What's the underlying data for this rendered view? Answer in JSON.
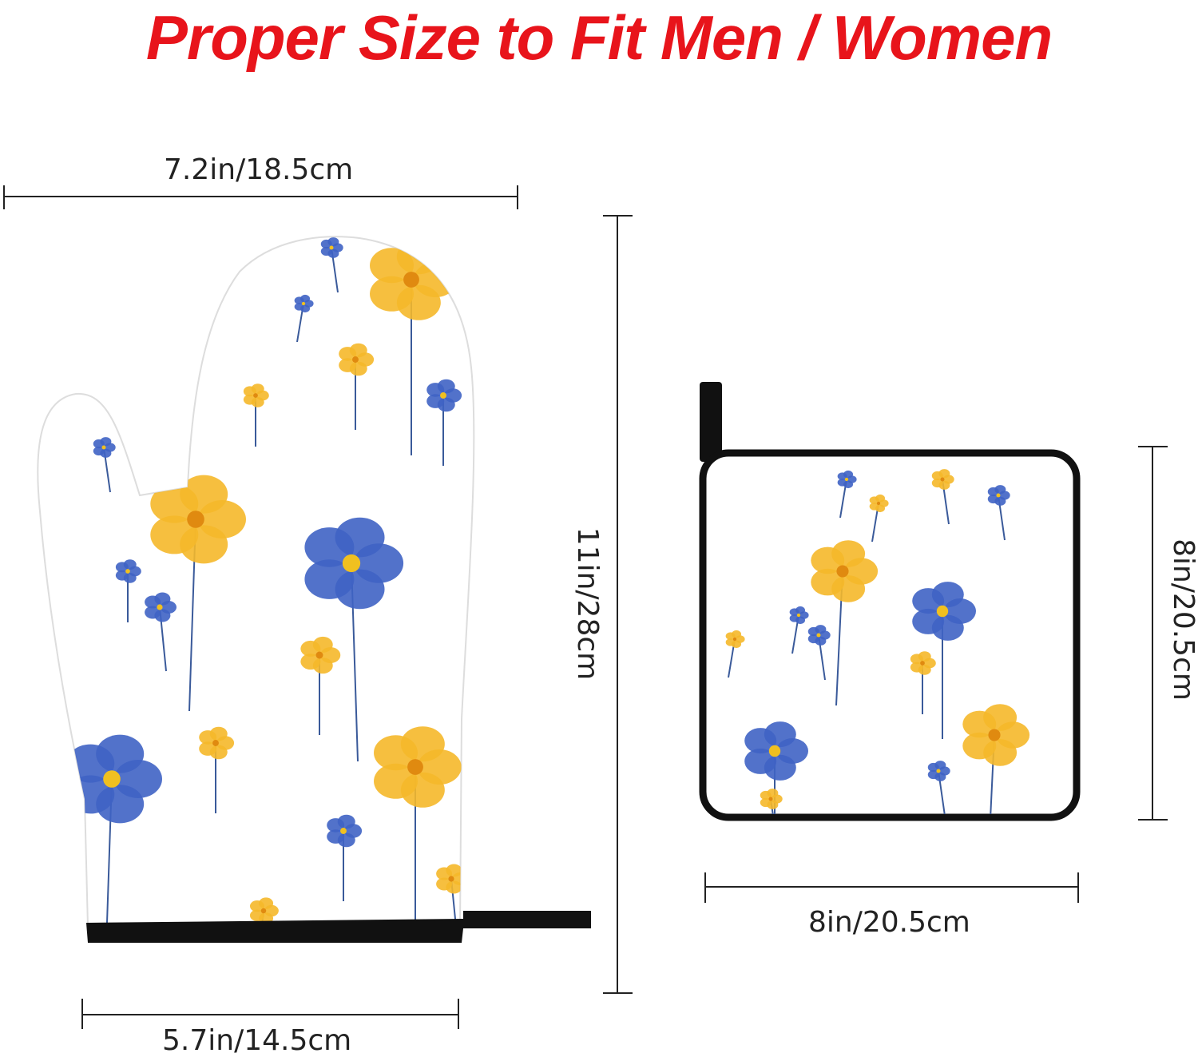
{
  "title": "Proper Size to Fit Men / Women",
  "colors": {
    "title": "#e8141b",
    "blue_flower": "#3f63c4",
    "yellow_flower": "#f5b82a",
    "trim": "#111111"
  },
  "mitt": {
    "width_label": "7.2in/18.5cm",
    "height_label": "11in/28cm",
    "cuff_label": "5.7in/14.5cm"
  },
  "pot_holder": {
    "height_label": "8in/20.5cm",
    "width_label": "8in/20.5cm"
  }
}
